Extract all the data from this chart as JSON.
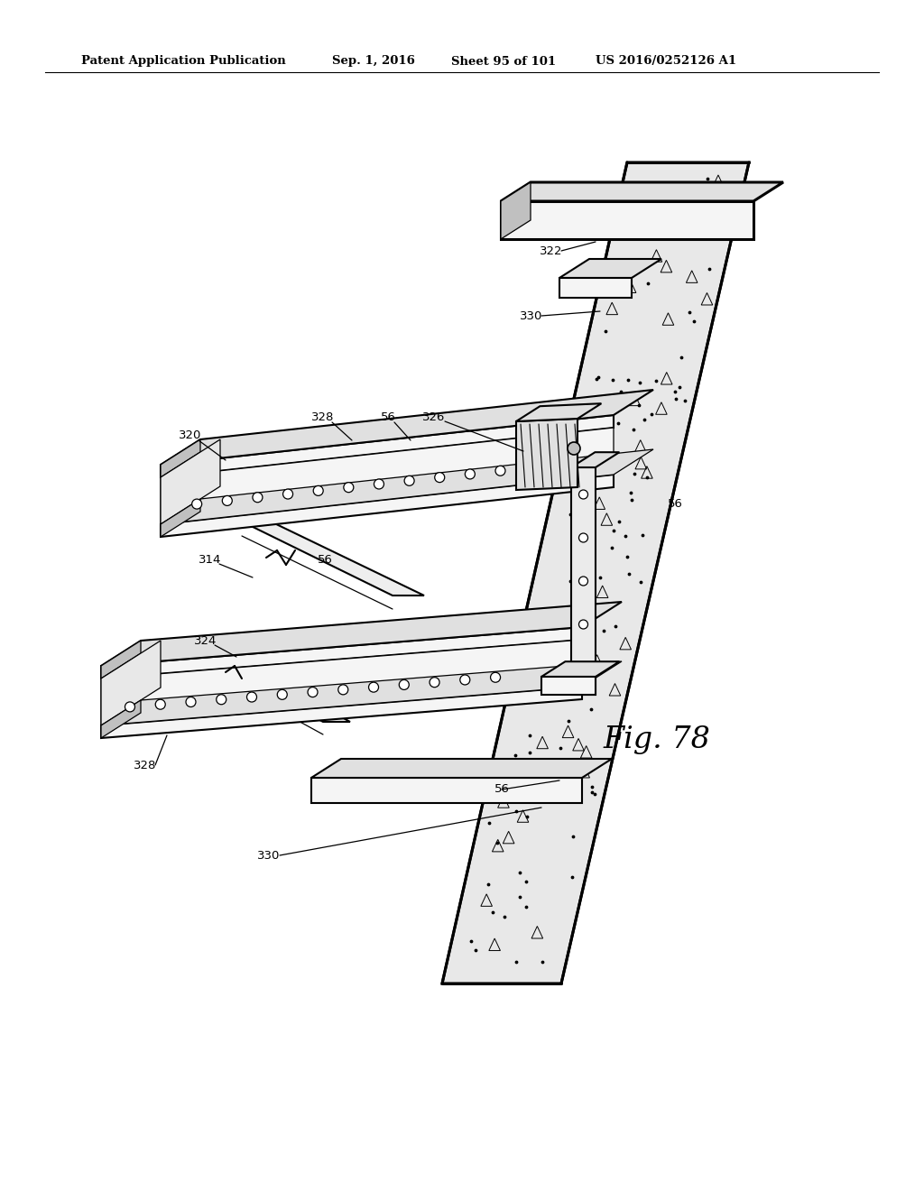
{
  "bg_color": "#ffffff",
  "header_left": "Patent Application Publication",
  "header_mid1": "Sep. 1, 2016",
  "header_mid2": "Sheet 95 of 101",
  "header_right": "US 2016/0252126 A1",
  "fig_label": "Fig. 78",
  "lw_heavy": 2.2,
  "lw_med": 1.5,
  "lw_light": 0.9,
  "fc_light": "#f5f5f5",
  "fc_mid": "#e0e0e0",
  "fc_dark": "#c0c0c0",
  "fc_concrete": "#e8e8e8"
}
